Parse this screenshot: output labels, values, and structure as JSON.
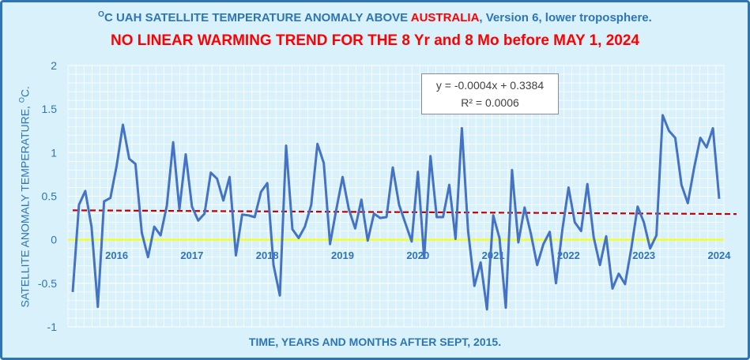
{
  "title_line1": {
    "sup": "O",
    "part1": "C UAH SATELLITE TEMPERATURE ANOMALY ABOVE ",
    "highlight": "AUSTRALIA",
    "part2": ", Version 6, lower troposphere."
  },
  "title_line2": "NO LINEAR WARMING TREND FOR THE 8 Yr and 8 Mo before MAY 1, 2024",
  "ylabel": {
    "text": "SATELLITE ANOMALY TEMPERATURE, ",
    "sup": "O",
    "suffix": "C."
  },
  "xlabel": "TIME,   YEARS AND MONTHS AFTER SEPT, 2015.",
  "trend_equation": "y = -0.0004x + 0.3384",
  "r_squared": "R² = 0.0006",
  "colors": {
    "background": "#d9f1fb",
    "frame": "#2e75b6",
    "title": "#2e75b6",
    "highlight": "#ff0000",
    "series": "#4472c4",
    "trend": "#c00000",
    "zero_line": "#ffff00",
    "grid": "#ffffff"
  },
  "chart_data": {
    "type": "line",
    "start": "2015-09",
    "end": "2024-04",
    "ylim": [
      -1,
      2
    ],
    "y_ticks": [
      -1,
      -0.5,
      0,
      0.5,
      1,
      1.5,
      2
    ],
    "year_labels": [
      "2016",
      "2017",
      "2018",
      "2019",
      "2020",
      "2021",
      "2022",
      "2023",
      "2024"
    ],
    "grid": true,
    "zero_reference_line": 0,
    "series": [
      {
        "values": [
          -0.6,
          0.4,
          0.56,
          0.15,
          -0.77,
          0.44,
          0.48,
          0.85,
          1.32,
          0.93,
          0.87,
          0.08,
          -0.2,
          0.15,
          0.05,
          0.39,
          1.12,
          0.35,
          0.98,
          0.38,
          0.22,
          0.3,
          0.77,
          0.7,
          0.45,
          0.72,
          -0.18,
          0.29,
          0.28,
          0.26,
          0.55,
          0.65,
          -0.29,
          -0.64,
          1.08,
          0.12,
          0.02,
          0.15,
          0.4,
          1.1,
          0.88,
          -0.05,
          0.35,
          0.72,
          0.35,
          0.13,
          0.46,
          -0.01,
          0.3,
          0.25,
          0.26,
          0.83,
          0.4,
          0.19,
          -0.02,
          0.78,
          -0.21,
          0.96,
          0.26,
          0.26,
          0.63,
          0.01,
          1.28,
          0.1,
          -0.53,
          -0.26,
          -0.8,
          0.28,
          0.02,
          -0.78,
          0.8,
          -0.03,
          0.37,
          0.07,
          -0.29,
          -0.05,
          0.09,
          -0.5,
          0.11,
          0.6,
          0.2,
          0.1,
          0.64,
          0.03,
          -0.29,
          0.04,
          -0.56,
          -0.39,
          -0.51,
          -0.1,
          0.38,
          0.2,
          -0.1,
          0.05,
          1.43,
          1.25,
          1.17,
          0.63,
          0.42,
          0.82,
          1.17,
          1.06,
          1.28,
          0.47
        ]
      }
    ],
    "trend": {
      "slope": -0.0004,
      "intercept": 0.3384
    }
  }
}
